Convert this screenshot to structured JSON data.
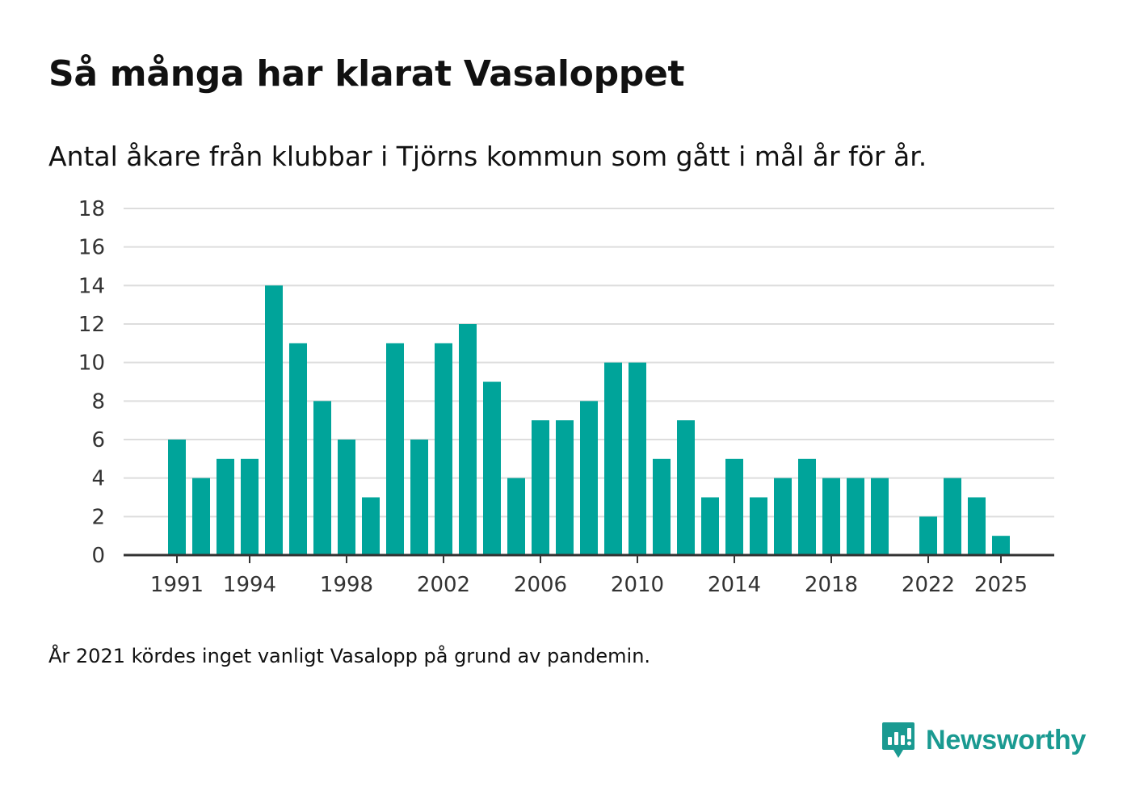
{
  "header": {
    "title": "Så många har klarat Vasaloppet",
    "subtitle": "Antal åkare från klubbar i Tjörns kommun som gått i mål år för år."
  },
  "footnote": "År 2021 kördes inget vanligt Vasalopp på grund av pandemin.",
  "brand": {
    "name": "Newsworthy",
    "color": "#1a9a91",
    "icon": "newsworthy-logo-icon"
  },
  "colors": {
    "bar": "#00a49a",
    "grid": "#dddddd",
    "axis": "#333333"
  },
  "chart_data": {
    "type": "bar",
    "title": "Så många har klarat Vasaloppet",
    "xlabel": "",
    "ylabel": "",
    "categories": [
      1991,
      1992,
      1993,
      1994,
      1995,
      1996,
      1997,
      1998,
      1999,
      2000,
      2001,
      2002,
      2003,
      2004,
      2005,
      2006,
      2007,
      2008,
      2009,
      2010,
      2011,
      2012,
      2013,
      2014,
      2015,
      2016,
      2017,
      2018,
      2019,
      2020,
      2021,
      2022,
      2023,
      2024,
      2025
    ],
    "values": [
      6,
      4,
      5,
      5,
      14,
      11,
      8,
      6,
      3,
      11,
      6,
      11,
      12,
      9,
      4,
      7,
      7,
      8,
      10,
      10,
      5,
      7,
      3,
      5,
      3,
      4,
      5,
      4,
      4,
      4,
      null,
      2,
      4,
      3,
      1
    ],
    "ylim": [
      0,
      18
    ],
    "yticks": [
      0,
      2,
      4,
      6,
      8,
      10,
      12,
      14,
      16,
      18
    ],
    "xticks": [
      1991,
      1994,
      1998,
      2002,
      2006,
      2010,
      2014,
      2018,
      2022,
      2025
    ],
    "grid": true,
    "legend": "none"
  }
}
